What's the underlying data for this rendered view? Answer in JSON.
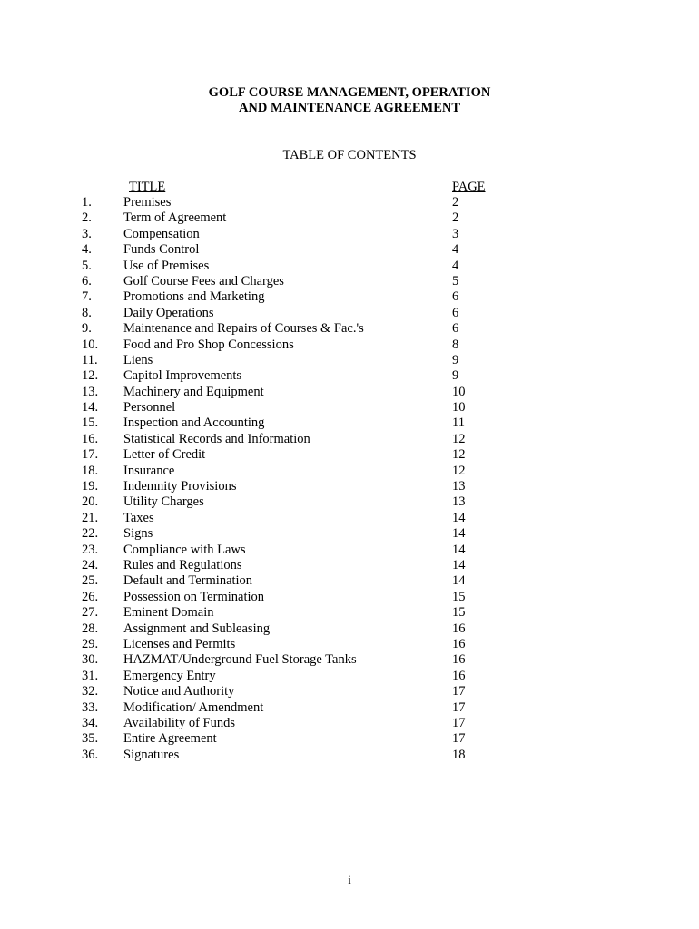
{
  "document": {
    "title_line1": "GOLF COURSE MANAGEMENT, OPERATION",
    "title_line2": "AND MAINTENANCE AGREEMENT",
    "toc_heading": "TABLE OF CONTENTS",
    "col_title": "TITLE",
    "col_page": "PAGE",
    "entries": [
      {
        "num": "1.",
        "title": "Premises",
        "page": "2"
      },
      {
        "num": "2.",
        "title": "Term of Agreement",
        "page": "2"
      },
      {
        "num": "3.",
        "title": "Compensation",
        "page": "3"
      },
      {
        "num": "4.",
        "title": "Funds Control",
        "page": "4"
      },
      {
        "num": "5.",
        "title": "Use of Premises",
        "page": "4"
      },
      {
        "num": "6.",
        "title": "Golf Course Fees and Charges",
        "page": "5"
      },
      {
        "num": "7.",
        "title": "Promotions and Marketing",
        "page": "6"
      },
      {
        "num": "8.",
        "title": "Daily Operations",
        "page": "6"
      },
      {
        "num": "9.",
        "title": "Maintenance and Repairs of Courses & Fac.'s",
        "page": "6"
      },
      {
        "num": "10.",
        "title": "Food and Pro Shop Concessions",
        "page": "8"
      },
      {
        "num": "11.",
        "title": "Liens",
        "page": "9"
      },
      {
        "num": "12.",
        "title": "Capitol Improvements",
        "page": "9"
      },
      {
        "num": "13.",
        "title": "Machinery and Equipment",
        "page": "10"
      },
      {
        "num": "14.",
        "title": "Personnel",
        "page": "10"
      },
      {
        "num": "15.",
        "title": "Inspection and Accounting",
        "page": "11"
      },
      {
        "num": "16.",
        "title": "Statistical Records and Information",
        "page": "12"
      },
      {
        "num": "17.",
        "title": "Letter of Credit",
        "page": "12"
      },
      {
        "num": "18.",
        "title": "Insurance",
        "page": "12"
      },
      {
        "num": "19.",
        "title": "Indemnity Provisions",
        "page": "13"
      },
      {
        "num": "20.",
        "title": "Utility Charges",
        "page": "13"
      },
      {
        "num": "21.",
        "title": "Taxes",
        "page": "14"
      },
      {
        "num": "22.",
        "title": "Signs",
        "page": "14"
      },
      {
        "num": "23.",
        "title": "Compliance with Laws",
        "page": "14"
      },
      {
        "num": "24.",
        "title": "Rules and Regulations",
        "page": "14"
      },
      {
        "num": "25.",
        "title": "Default and Termination",
        "page": "14"
      },
      {
        "num": "26.",
        "title": "Possession on Termination",
        "page": "15"
      },
      {
        "num": "27.",
        "title": "Eminent Domain",
        "page": "15"
      },
      {
        "num": "28.",
        "title": "Assignment and Subleasing",
        "page": "16"
      },
      {
        "num": "29.",
        "title": "Licenses and Permits",
        "page": "16"
      },
      {
        "num": "30.",
        "title": "HAZMAT/Underground Fuel Storage Tanks",
        "page": "16"
      },
      {
        "num": "31.",
        "title": "Emergency Entry",
        "page": "16"
      },
      {
        "num": "32.",
        "title": "Notice and Authority",
        "page": "17"
      },
      {
        "num": "33.",
        "title": "Modification/ Amendment",
        "page": "17"
      },
      {
        "num": "34.",
        "title": "Availability of Funds",
        "page": "17"
      },
      {
        "num": "35.",
        "title": "Entire Agreement",
        "page": "17"
      },
      {
        "num": "36.",
        "title": "Signatures",
        "page": "18"
      }
    ],
    "page_number": "i"
  }
}
